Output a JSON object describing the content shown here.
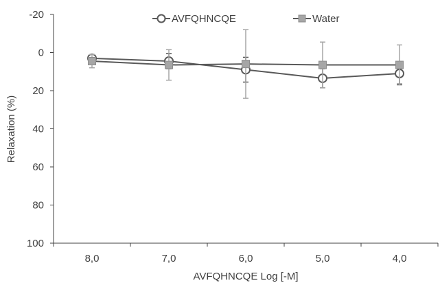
{
  "chart_data": {
    "type": "line",
    "title": "",
    "xlabel": "AVFQHNCQE Log [-M]",
    "ylabel": "Relaxation (%)",
    "categories": [
      "8,0",
      "7,0",
      "6,0",
      "5,0",
      "4,0"
    ],
    "ylim": [
      100,
      -20
    ],
    "y_axis_inverted": true,
    "y_ticks": [
      "-20",
      "0",
      "20",
      "40",
      "60",
      "80",
      "100"
    ],
    "grid": false,
    "legend_position": "top",
    "series": [
      {
        "name": "AVFQHNCQE",
        "marker": "open-circle",
        "color": "#595959",
        "values": [
          3,
          4.5,
          9,
          13.5,
          11
        ],
        "error": [
          2,
          4,
          6.5,
          5,
          5.5
        ]
      },
      {
        "name": "Water",
        "marker": "filled-square",
        "color": "#a6a6a6",
        "values": [
          4.5,
          6.5,
          6,
          6.5,
          6.5
        ],
        "error": [
          3.5,
          8,
          18,
          12,
          10.5
        ]
      }
    ]
  }
}
